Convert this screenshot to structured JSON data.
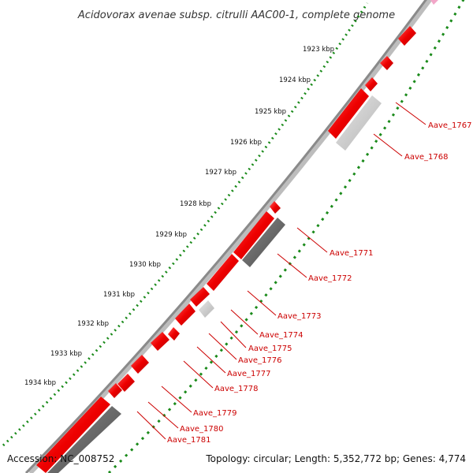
{
  "title": "Acidovorax avenae subsp. citrulli AAC00-1, complete genome",
  "footer": {
    "accession": "Accession: NC_008752",
    "topology": "Topology: circular; Length: 5,352,772 bp; Genes: 4,774"
  },
  "ticks": [
    "1923 kbp",
    "1924 kbp",
    "1925 kbp",
    "1926 kbp",
    "1927 kbp",
    "1928 kbp",
    "1929 kbp",
    "1930 kbp",
    "1931 kbp",
    "1932 kbp",
    "1933 kbp",
    "1934 kbp"
  ],
  "genes": [
    {
      "name": "Aave_1767"
    },
    {
      "name": "Aave_1768"
    },
    {
      "name": "Aave_1771"
    },
    {
      "name": "Aave_1772"
    },
    {
      "name": "Aave_1773"
    },
    {
      "name": "Aave_1774"
    },
    {
      "name": "Aave_1775"
    },
    {
      "name": "Aave_1776"
    },
    {
      "name": "Aave_1777"
    },
    {
      "name": "Aave_1778"
    },
    {
      "name": "Aave_1779"
    },
    {
      "name": "Aave_1780"
    },
    {
      "name": "Aave_1781"
    }
  ],
  "colors": {
    "backbone": "#8a8a8a",
    "gene_forward": "#ee0000",
    "gene_dark": "#666666",
    "gene_light": "#c8c8c8",
    "tick_dots": "#1a8a1a",
    "label": "#cc0000"
  }
}
